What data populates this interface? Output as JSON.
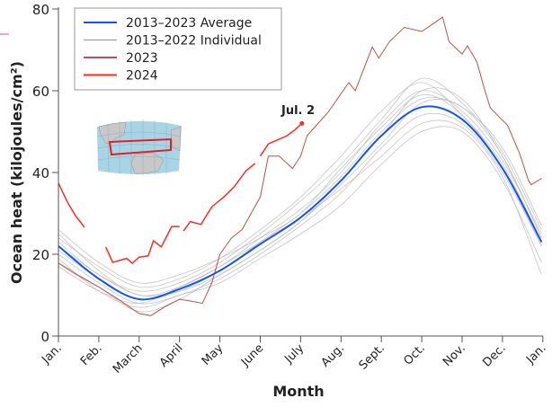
{
  "chart_data": {
    "type": "line",
    "title": "",
    "xlabel": "Month",
    "ylabel": "Ocean heat (kilojoules/cm²)",
    "ylim": [
      0,
      80
    ],
    "yticks": [
      0,
      20,
      40,
      60,
      80
    ],
    "xticks": [
      "Jan.",
      "Feb.",
      "March",
      "April",
      "May",
      "June",
      "July",
      "Aug.",
      "Sept.",
      "Oct.",
      "Nov.",
      "Dec.",
      "Jan."
    ],
    "grid": false,
    "legend_placement": "top-left",
    "colors": {
      "average": "#1452ff",
      "individual": "#b8b8b8",
      "y2023": "#c0504d",
      "y2024": "#ff2a1f"
    },
    "legend": [
      {
        "label": "2013–2023 Average",
        "color": "#1452ff"
      },
      {
        "label": "2013–2022 Individual",
        "color": "#a0a0a0"
      },
      {
        "label": "2023",
        "color": "#c0504d"
      },
      {
        "label": "2024",
        "color": "#ff2a1f"
      }
    ],
    "annotation": {
      "label": "Jul. 2",
      "date": "07-02",
      "value": 52
    },
    "inset_map": {
      "description_icon": "map-icon",
      "region_color": "#e02020"
    },
    "monthly_dates": [
      "01-01",
      "02-01",
      "03-01",
      "04-01",
      "05-01",
      "06-01",
      "07-01",
      "08-01",
      "09-01",
      "10-01",
      "11-01",
      "12-01",
      "12-31"
    ],
    "average": [
      22,
      14,
      9,
      11.5,
      16,
      22.5,
      29,
      38,
      49,
      56,
      53,
      41,
      23
    ],
    "individual": [
      [
        25,
        16,
        10,
        12,
        17,
        24,
        31,
        40,
        52,
        60,
        55,
        43,
        25
      ],
      [
        20,
        13,
        8,
        10,
        14,
        20,
        27,
        35,
        46,
        54,
        52,
        40,
        22
      ],
      [
        18,
        12,
        6,
        9,
        15,
        21,
        28,
        37,
        47,
        57,
        56,
        44,
        24
      ],
      [
        23,
        15,
        11,
        13,
        18,
        25,
        33,
        42,
        53,
        63,
        57,
        45,
        26
      ],
      [
        19,
        11,
        7,
        10,
        13,
        19,
        25,
        32,
        42,
        50,
        50,
        38,
        18
      ],
      [
        24,
        17,
        12,
        14,
        19,
        26,
        34,
        44,
        55,
        62,
        54,
        42,
        23
      ],
      [
        21,
        14,
        9,
        11,
        16,
        23,
        30,
        39,
        50,
        58,
        56,
        46,
        27
      ],
      [
        17,
        11,
        8,
        12,
        17,
        23,
        29,
        36,
        44,
        52,
        51,
        39,
        15
      ],
      [
        22,
        15,
        10,
        11,
        15,
        21,
        28,
        38,
        49,
        60,
        58,
        44,
        24
      ],
      [
        26,
        18,
        13,
        15,
        19,
        24,
        30,
        41,
        51,
        59,
        54,
        41,
        22
      ]
    ],
    "series_2023": [
      [
        "01-01",
        17.8
      ],
      [
        "01-15",
        15
      ],
      [
        "02-01",
        12
      ],
      [
        "02-15",
        9
      ],
      [
        "03-01",
        5.5
      ],
      [
        "03-10",
        5
      ],
      [
        "03-20",
        7
      ],
      [
        "04-01",
        9
      ],
      [
        "04-10",
        8.5
      ],
      [
        "04-18",
        8
      ],
      [
        "04-25",
        13
      ],
      [
        "05-01",
        20
      ],
      [
        "05-10",
        24
      ],
      [
        "05-18",
        26
      ],
      [
        "06-01",
        34
      ],
      [
        "06-07",
        44
      ],
      [
        "06-15",
        44
      ],
      [
        "06-25",
        41
      ],
      [
        "07-01",
        44
      ],
      [
        "07-06",
        49
      ],
      [
        "07-22",
        54.7
      ],
      [
        "08-07",
        62
      ],
      [
        "08-12",
        60
      ],
      [
        "08-25",
        70.7
      ],
      [
        "08-30",
        68
      ],
      [
        "09-07",
        72
      ],
      [
        "09-18",
        75.5
      ],
      [
        "10-01",
        74.5
      ],
      [
        "10-08",
        76
      ],
      [
        "10-17",
        78
      ],
      [
        "10-22",
        72
      ],
      [
        "11-01",
        69
      ],
      [
        "11-05",
        71
      ],
      [
        "11-12",
        67
      ],
      [
        "11-18",
        60
      ],
      [
        "11-22",
        55.8
      ],
      [
        "12-05",
        51.5
      ],
      [
        "12-14",
        44.8
      ],
      [
        "12-21",
        38
      ],
      [
        "12-23",
        37
      ],
      [
        "12-31",
        38.6
      ]
    ],
    "series_2024_segments": [
      [
        [
          "01-01",
          37.4
        ],
        [
          "01-08",
          32.7
        ],
        [
          "01-14",
          29.5
        ],
        [
          "01-21",
          26.6
        ]
      ],
      [
        [
          "02-06",
          21.8
        ],
        [
          "02-11",
          18
        ],
        [
          "02-21",
          19
        ],
        [
          "02-25",
          17.8
        ],
        [
          "03-01",
          19.3
        ],
        [
          "03-08",
          19.6
        ],
        [
          "03-12",
          23.3
        ],
        [
          "03-18",
          21.8
        ],
        [
          "03-26",
          26.8
        ],
        [
          "04-01",
          26.8
        ]
      ],
      [
        [
          "04-04",
          25.7
        ],
        [
          "04-09",
          28
        ],
        [
          "04-17",
          27.3
        ],
        [
          "04-25",
          31.6
        ],
        [
          "05-04",
          34
        ],
        [
          "05-12",
          36.5
        ],
        [
          "05-21",
          40.4
        ],
        [
          "05-28",
          42.2
        ]
      ],
      [
        [
          "06-01",
          44
        ],
        [
          "06-07",
          47
        ],
        [
          "06-14",
          48
        ],
        [
          "06-21",
          49
        ],
        [
          "06-27",
          50.5
        ],
        [
          "07-02",
          52
        ]
      ]
    ]
  }
}
